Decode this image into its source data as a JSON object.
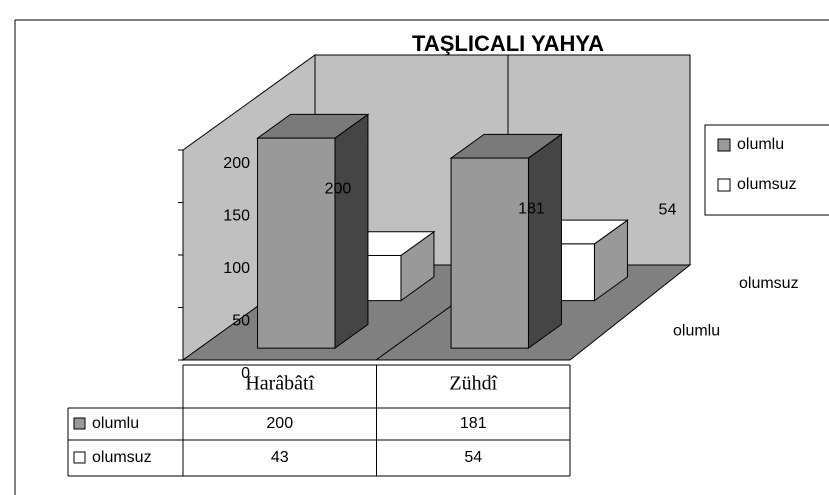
{
  "chart_data": {
    "type": "bar",
    "title": "TAŞLICALI YAHYA",
    "categories": [
      "Harâbâtî",
      "Zühdî"
    ],
    "series": [
      {
        "name": "olumlu",
        "color": "#999999",
        "values": [
          200,
          181
        ]
      },
      {
        "name": "olumsuz",
        "color": "#ffffff",
        "values": [
          43,
          54
        ]
      }
    ],
    "ylim": [
      0,
      200
    ],
    "yticks": [
      0,
      50,
      100,
      150,
      200
    ],
    "legend": "right",
    "data_table": true
  }
}
